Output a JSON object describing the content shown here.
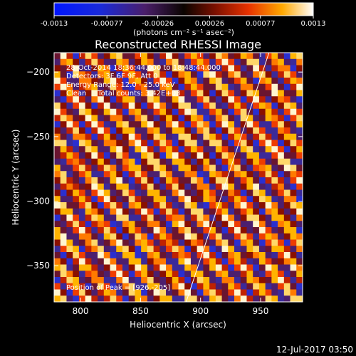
{
  "colorbar": {
    "ticks": [
      "-0.0013",
      "-0.00077",
      "-0.00026",
      "0.00026",
      "0.00077",
      "0.0013"
    ],
    "tick_values": [
      -0.0013,
      -0.00077,
      -0.00026,
      0.00026,
      0.00077,
      0.0013
    ],
    "range": [
      -0.0013,
      0.0013
    ],
    "unit_label": "(photons cm⁻² s⁻¹ asec⁻²)",
    "colormap": "rhessi"
  },
  "chart_data": {
    "type": "heatmap",
    "title": "Reconstructed RHESSI Image",
    "xlabel": "Heliocentric X (arcsec)",
    "ylabel": "Heliocentric Y (arcsec)",
    "xlim": [
      778,
      985
    ],
    "ylim": [
      -378,
      -185
    ],
    "x_ticks": [
      800,
      850,
      900,
      950
    ],
    "y_ticks": [
      -200,
      -250,
      -300,
      -350
    ],
    "x_tick_labels": [
      "800",
      "850",
      "900",
      "950"
    ],
    "y_tick_labels": [
      "−200",
      "−250",
      "−300",
      "−350"
    ],
    "annotations": [
      "28-Oct-2014 18:36:44.000 to 18:48:44.000",
      "Detectors: 3F 6F 9F, Att 0",
      "Energy Range: 12.0 - 25.0 keV",
      "Clean     Total counts: 3.42E+03"
    ],
    "peak_label": "Position of Peak = [926,-205]",
    "peak": [
      926,
      -205
    ],
    "limb_line": [
      [
        888,
        -378
      ],
      [
        957,
        -185
      ]
    ],
    "pattern": "diagonal stripes (positive and negative fringes)"
  },
  "footer": {
    "timestamp": "12-Jul-2017 03:50"
  },
  "colors": {
    "background": "#000000",
    "text": "#ffffff",
    "limb": "#ffffff"
  }
}
